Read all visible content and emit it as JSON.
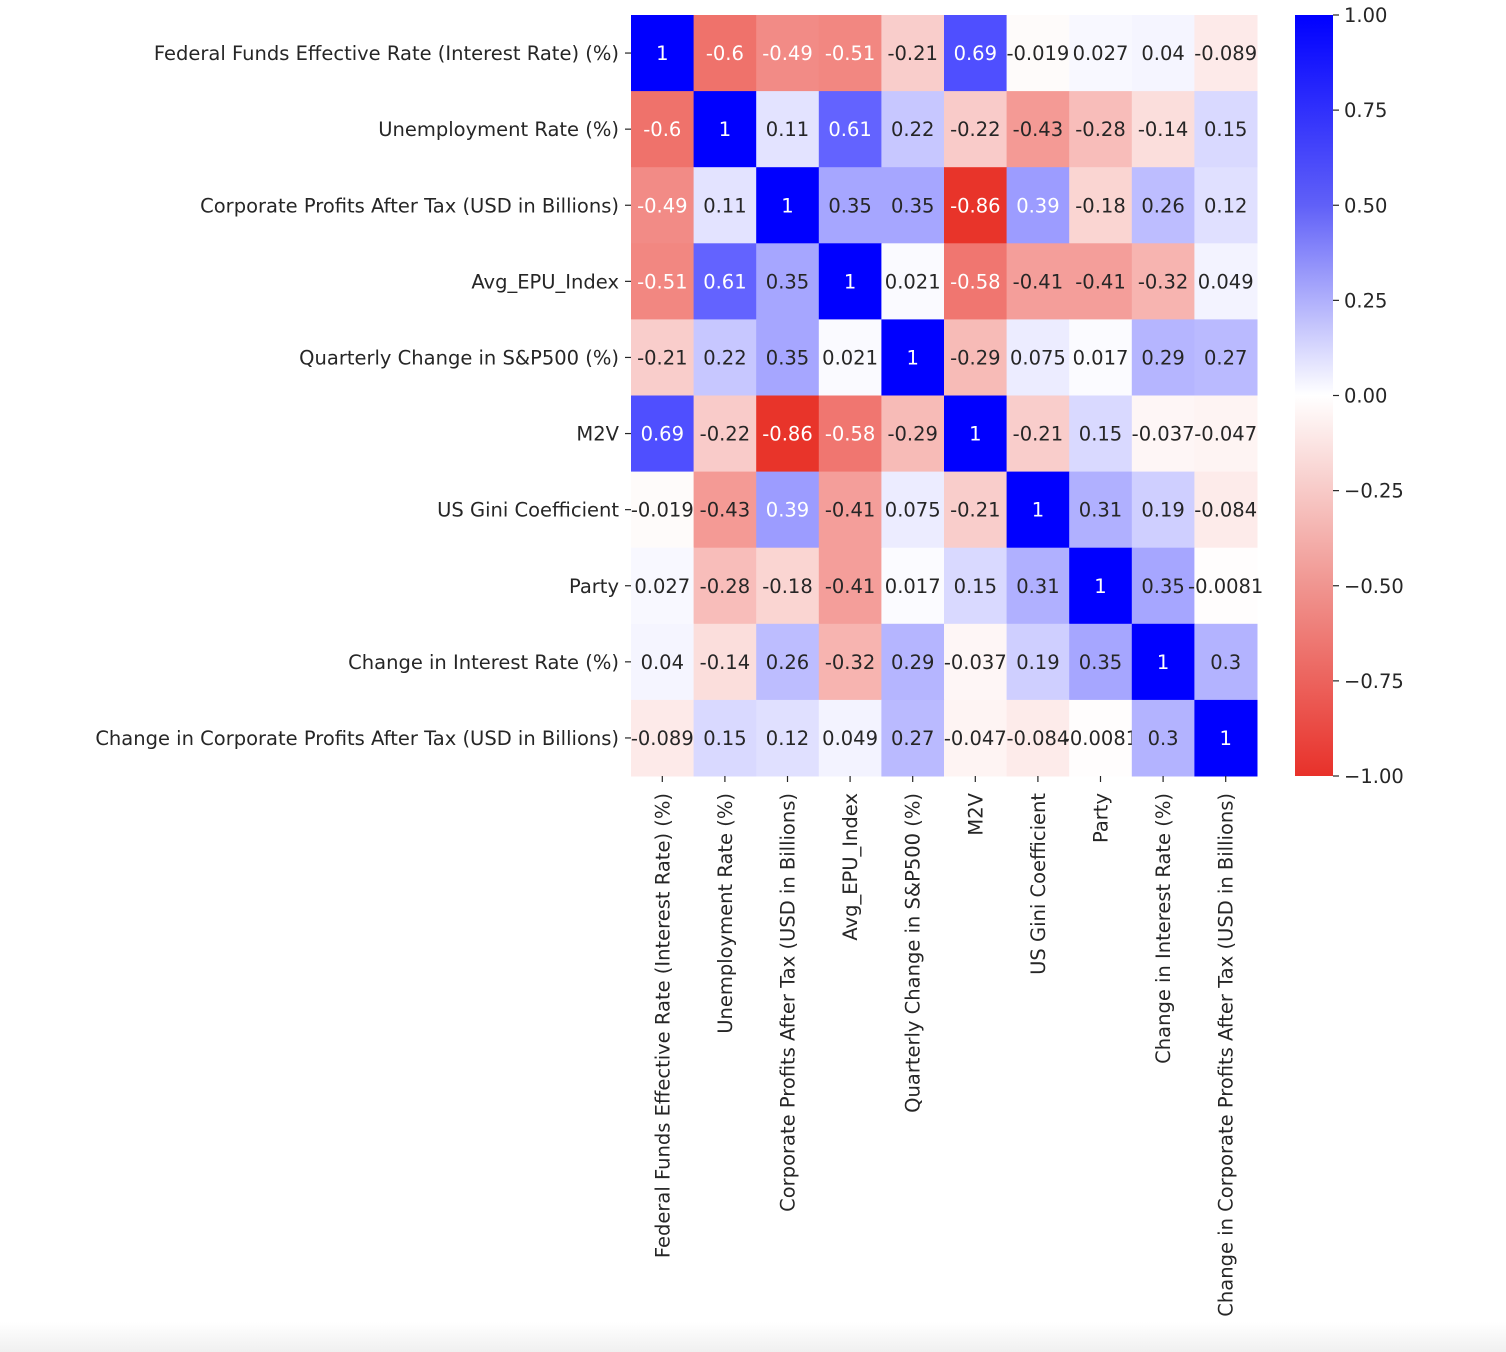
{
  "chart_data": {
    "type": "heatmap",
    "labels": [
      "Federal Funds Effective Rate (Interest Rate) (%)",
      "Unemployment Rate (%)",
      "Corporate Profits After Tax (USD in Billions)",
      "Avg_EPU_Index",
      "Quarterly Change in S&P500 (%)",
      "M2V",
      "US Gini Coefficient",
      "Party",
      "Change in Interest Rate (%)",
      "Change in Corporate Profits After Tax (USD in Billions)"
    ],
    "values": [
      [
        1,
        -0.6,
        -0.49,
        -0.51,
        -0.21,
        0.69,
        -0.019,
        0.027,
        0.04,
        -0.089
      ],
      [
        -0.6,
        1,
        0.11,
        0.61,
        0.22,
        -0.22,
        -0.43,
        -0.28,
        -0.14,
        0.15
      ],
      [
        -0.49,
        0.11,
        1,
        0.35,
        0.35,
        -0.86,
        0.39,
        -0.18,
        0.26,
        0.12
      ],
      [
        -0.51,
        0.61,
        0.35,
        1,
        0.021,
        -0.58,
        -0.41,
        -0.41,
        -0.32,
        0.049
      ],
      [
        -0.21,
        0.22,
        0.35,
        0.021,
        1,
        -0.29,
        0.075,
        0.017,
        0.29,
        0.27
      ],
      [
        0.69,
        -0.22,
        -0.86,
        -0.58,
        -0.29,
        1,
        -0.21,
        0.15,
        -0.037,
        -0.047
      ],
      [
        -0.019,
        -0.43,
        0.39,
        -0.41,
        0.075,
        -0.21,
        1,
        0.31,
        0.19,
        -0.084
      ],
      [
        0.027,
        -0.28,
        -0.18,
        -0.41,
        0.017,
        0.15,
        0.31,
        1,
        0.35,
        -0.0081
      ],
      [
        0.04,
        -0.14,
        0.26,
        -0.32,
        0.29,
        -0.037,
        0.19,
        0.35,
        1,
        0.3
      ],
      [
        -0.089,
        0.15,
        0.12,
        0.049,
        0.27,
        -0.047,
        -0.084,
        -0.0081,
        0.3,
        1
      ]
    ],
    "colorbar": {
      "range": [
        -1,
        1
      ],
      "ticks": [
        "1.00",
        "0.75",
        "0.50",
        "0.25",
        "0.00",
        "−0.25",
        "−0.50",
        "−0.75",
        "−1.00"
      ],
      "tick_values": [
        1,
        0.75,
        0.5,
        0.25,
        0,
        -0.25,
        -0.5,
        -0.75,
        -1
      ]
    },
    "colors": {
      "positive": "#0000ff",
      "center": "#ffffff",
      "negative": "#e8312a"
    },
    "annotated": true
  }
}
